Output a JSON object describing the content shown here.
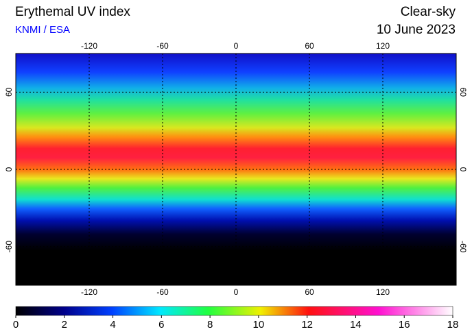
{
  "header": {
    "title": "Erythemal UV index",
    "source": "KNMI / ESA",
    "condition": "Clear-sky",
    "date": "10 June 2023"
  },
  "map": {
    "lon_range": [
      -180,
      180
    ],
    "lat_range": [
      -90,
      90
    ],
    "lon_ticks": [
      -120,
      -60,
      0,
      60,
      120
    ],
    "lat_ticks": [
      60,
      0,
      -60
    ]
  },
  "colorbar": {
    "range": [
      0,
      18
    ],
    "ticks": [
      0,
      2,
      4,
      6,
      8,
      10,
      12,
      14,
      16,
      18
    ]
  }
}
